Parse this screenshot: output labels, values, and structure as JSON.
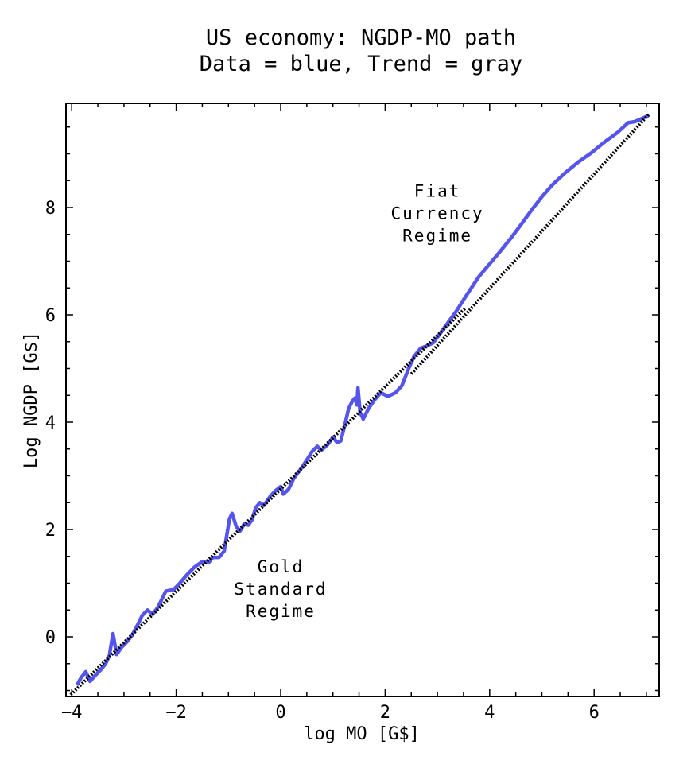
{
  "chart_data": {
    "type": "line",
    "title": "US economy: NGDP-MO path",
    "subtitle": "Data = blue, Trend = gray",
    "xlabel": "log MO [G$]",
    "ylabel": "Log NGDP [G$]",
    "xlim": [
      -4.1,
      7.25
    ],
    "ylim": [
      -1.1,
      9.95
    ],
    "x_ticks": [
      -4,
      -2,
      0,
      2,
      4,
      6
    ],
    "x_tick_labels": [
      "-4",
      "-2",
      "0",
      "2",
      "4",
      "6"
    ],
    "x_minor_step": 0.5,
    "y_ticks": [
      0,
      2,
      4,
      6,
      8
    ],
    "y_tick_labels": [
      "0",
      "2",
      "4",
      "6",
      "8"
    ],
    "y_minor_step": 0.5,
    "grid": false,
    "legend": "none (described in subtitle)",
    "colors": {
      "data": "#5555ee",
      "trend": "#000000",
      "frame": "#000000"
    },
    "series": [
      {
        "name": "Data",
        "style": "solid",
        "color": "#5555ee",
        "points": [
          [
            -3.9,
            -0.9
          ],
          [
            -3.82,
            -0.76
          ],
          [
            -3.73,
            -0.65
          ],
          [
            -3.65,
            -0.83
          ],
          [
            -3.55,
            -0.72
          ],
          [
            -3.45,
            -0.62
          ],
          [
            -3.35,
            -0.5
          ],
          [
            -3.28,
            -0.35
          ],
          [
            -3.21,
            0.06
          ],
          [
            -3.14,
            -0.33
          ],
          [
            -3.05,
            -0.2
          ],
          [
            -2.95,
            -0.1
          ],
          [
            -2.85,
            0.02
          ],
          [
            -2.75,
            0.2
          ],
          [
            -2.65,
            0.4
          ],
          [
            -2.55,
            0.5
          ],
          [
            -2.45,
            0.42
          ],
          [
            -2.35,
            0.55
          ],
          [
            -2.2,
            0.85
          ],
          [
            -2.05,
            0.88
          ],
          [
            -1.95,
            0.98
          ],
          [
            -1.8,
            1.15
          ],
          [
            -1.65,
            1.3
          ],
          [
            -1.5,
            1.4
          ],
          [
            -1.38,
            1.38
          ],
          [
            -1.3,
            1.48
          ],
          [
            -1.18,
            1.48
          ],
          [
            -1.08,
            1.6
          ],
          [
            -0.98,
            2.2
          ],
          [
            -0.93,
            2.3
          ],
          [
            -0.85,
            2.05
          ],
          [
            -0.78,
            1.97
          ],
          [
            -0.7,
            2.1
          ],
          [
            -0.62,
            2.08
          ],
          [
            -0.55,
            2.18
          ],
          [
            -0.48,
            2.4
          ],
          [
            -0.4,
            2.5
          ],
          [
            -0.32,
            2.45
          ],
          [
            -0.2,
            2.62
          ],
          [
            -0.1,
            2.72
          ],
          [
            0.0,
            2.8
          ],
          [
            0.05,
            2.66
          ],
          [
            0.15,
            2.75
          ],
          [
            0.25,
            2.95
          ],
          [
            0.4,
            3.15
          ],
          [
            0.5,
            3.3
          ],
          [
            0.6,
            3.45
          ],
          [
            0.7,
            3.55
          ],
          [
            0.78,
            3.48
          ],
          [
            0.9,
            3.58
          ],
          [
            1.0,
            3.72
          ],
          [
            1.08,
            3.62
          ],
          [
            1.15,
            3.65
          ],
          [
            1.22,
            3.92
          ],
          [
            1.3,
            4.25
          ],
          [
            1.37,
            4.39
          ],
          [
            1.42,
            4.45
          ],
          [
            1.46,
            4.32
          ],
          [
            1.48,
            4.64
          ],
          [
            1.52,
            4.18
          ],
          [
            1.58,
            4.06
          ],
          [
            1.68,
            4.25
          ],
          [
            1.8,
            4.42
          ],
          [
            1.92,
            4.55
          ],
          [
            2.05,
            4.48
          ],
          [
            2.2,
            4.55
          ],
          [
            2.32,
            4.68
          ],
          [
            2.45,
            5.0
          ],
          [
            2.55,
            5.22
          ],
          [
            2.68,
            5.38
          ],
          [
            2.8,
            5.42
          ],
          [
            2.92,
            5.48
          ],
          [
            3.05,
            5.65
          ],
          [
            3.2,
            5.85
          ],
          [
            3.35,
            6.05
          ],
          [
            3.5,
            6.28
          ],
          [
            3.65,
            6.5
          ],
          [
            3.8,
            6.72
          ],
          [
            4.0,
            6.95
          ],
          [
            4.2,
            7.18
          ],
          [
            4.4,
            7.42
          ],
          [
            4.6,
            7.68
          ],
          [
            4.8,
            7.95
          ],
          [
            5.0,
            8.2
          ],
          [
            5.2,
            8.42
          ],
          [
            5.45,
            8.65
          ],
          [
            5.7,
            8.85
          ],
          [
            5.95,
            9.02
          ],
          [
            6.2,
            9.22
          ],
          [
            6.45,
            9.4
          ],
          [
            6.65,
            9.58
          ],
          [
            6.78,
            9.6
          ],
          [
            6.92,
            9.66
          ],
          [
            7.05,
            9.72
          ]
        ]
      },
      {
        "name": "Trend (Gold Standard Regime)",
        "style": "dotted",
        "color": "#000000",
        "points": [
          [
            -4.02,
            -1.08
          ],
          [
            3.53,
            6.12
          ]
        ]
      },
      {
        "name": "Trend (Fiat Currency Regime)",
        "style": "dotted",
        "color": "#000000",
        "points": [
          [
            2.5,
            4.9
          ],
          [
            7.05,
            9.74
          ]
        ]
      }
    ],
    "annotations": [
      {
        "lines": [
          "Fiat",
          "Currency",
          "Regime"
        ],
        "x": 3.0,
        "y": 8.2
      },
      {
        "lines": [
          "Gold",
          "Standard",
          "Regime"
        ],
        "x": 0.0,
        "y": 1.2
      }
    ]
  }
}
